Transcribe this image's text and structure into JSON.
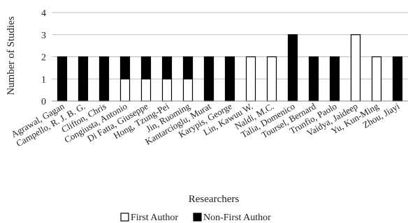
{
  "chart_data": {
    "type": "bar",
    "stacked": true,
    "categories": [
      "Agrawal, Gagan",
      "Campello, R. J. B. G.",
      "Clifton, Chris",
      "Congiusta, Antonio",
      "Di Fatta, Giuseppe",
      "Hong, Tzung-Pei",
      "Jin, Ruoming",
      "Kantarcioglu, Murat",
      "Karypis, George",
      "Lin, Kawuu W.",
      "Naldi, M.C.",
      "Talia, Domenico",
      "Toursel, Bernard",
      "Trunfio, Paolo",
      "Vaidya, Jaideep",
      "Yu, Kun-Ming",
      "Zhou, Jiayi"
    ],
    "series": [
      {
        "name": "First Author",
        "color": "#ffffff",
        "values": [
          0,
          0,
          0,
          1,
          1,
          1,
          1,
          0,
          0,
          2,
          2,
          0,
          0,
          0,
          3,
          2,
          0
        ]
      },
      {
        "name": "Non-First Author",
        "color": "#000000",
        "values": [
          2,
          2,
          2,
          1,
          1,
          1,
          1,
          2,
          2,
          0,
          0,
          3,
          2,
          2,
          0,
          0,
          2
        ]
      }
    ],
    "xlabel": "Researchers",
    "ylabel": "Number of Studies",
    "ylim": [
      0,
      4
    ],
    "yticks": [
      0,
      1,
      2,
      3,
      4
    ],
    "grid": true,
    "legend_position": "bottom"
  }
}
